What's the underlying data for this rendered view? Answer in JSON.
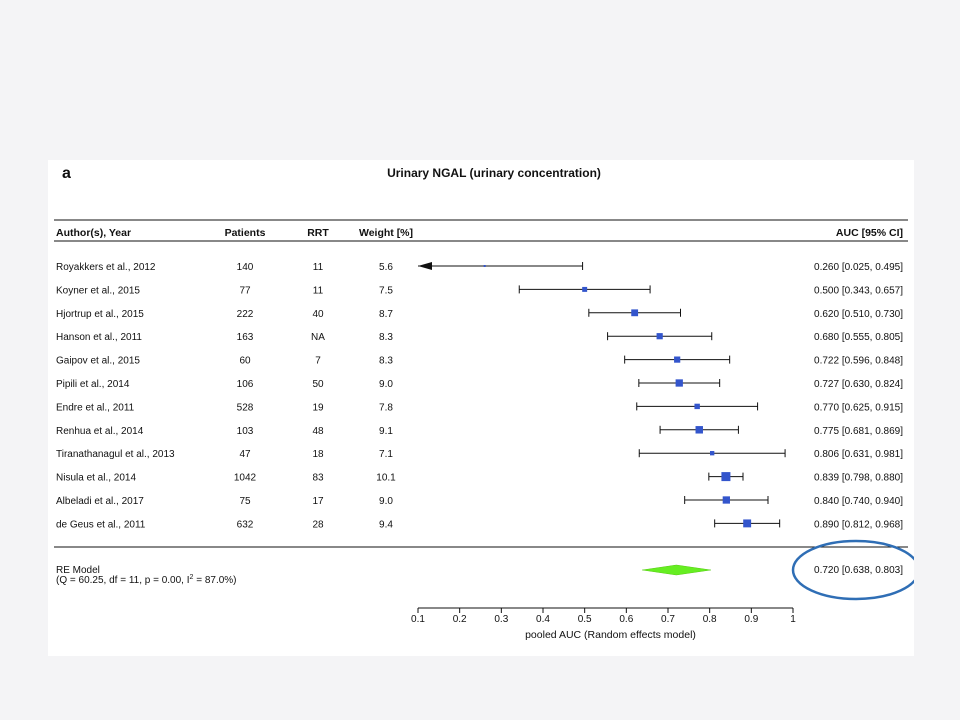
{
  "panel_label": "a",
  "chart_data": {
    "type": "forest",
    "title": "Urinary NGAL (urinary concentration)",
    "columns": {
      "author": "Author(s), Year",
      "patients": "Patients",
      "rrt": "RRT",
      "weight": "Weight [%]",
      "auc": "AUC [95% CI]"
    },
    "studies": [
      {
        "author": "Royakkers et al., 2012",
        "patients": "140",
        "rrt": "11",
        "weight": "5.6",
        "ci_text": "0.260 [0.025, 0.495]",
        "est": 0.26,
        "lo": 0.025,
        "hi": 0.495
      },
      {
        "author": "Koyner et al., 2015",
        "patients": "77",
        "rrt": "11",
        "weight": "7.5",
        "ci_text": "0.500 [0.343, 0.657]",
        "est": 0.5,
        "lo": 0.343,
        "hi": 0.657
      },
      {
        "author": "Hjortrup et al., 2015",
        "patients": "222",
        "rrt": "40",
        "weight": "8.7",
        "ci_text": "0.620 [0.510, 0.730]",
        "est": 0.62,
        "lo": 0.51,
        "hi": 0.73
      },
      {
        "author": "Hanson et al., 2011",
        "patients": "163",
        "rrt": "NA",
        "weight": "8.3",
        "ci_text": "0.680 [0.555, 0.805]",
        "est": 0.68,
        "lo": 0.555,
        "hi": 0.805
      },
      {
        "author": "Gaipov et al., 2015",
        "patients": "60",
        "rrt": "7",
        "weight": "8.3",
        "ci_text": "0.722 [0.596, 0.848]",
        "est": 0.722,
        "lo": 0.596,
        "hi": 0.848
      },
      {
        "author": "Pipili et al., 2014",
        "patients": "106",
        "rrt": "50",
        "weight": "9.0",
        "ci_text": "0.727 [0.630, 0.824]",
        "est": 0.727,
        "lo": 0.63,
        "hi": 0.824
      },
      {
        "author": "Endre et al., 2011",
        "patients": "528",
        "rrt": "19",
        "weight": "7.8",
        "ci_text": "0.770 [0.625, 0.915]",
        "est": 0.77,
        "lo": 0.625,
        "hi": 0.915
      },
      {
        "author": "Renhua et al., 2014",
        "patients": "103",
        "rrt": "48",
        "weight": "9.1",
        "ci_text": "0.775 [0.681, 0.869]",
        "est": 0.775,
        "lo": 0.681,
        "hi": 0.869
      },
      {
        "author": "Tiranathanagul et al., 2013",
        "patients": "47",
        "rrt": "18",
        "weight": "7.1",
        "ci_text": "0.806 [0.631, 0.981]",
        "est": 0.806,
        "lo": 0.631,
        "hi": 0.981
      },
      {
        "author": "Nisula et al., 2014",
        "patients": "1042",
        "rrt": "83",
        "weight": "10.1",
        "ci_text": "0.839 [0.798, 0.880]",
        "est": 0.839,
        "lo": 0.798,
        "hi": 0.88
      },
      {
        "author": "Albeladi et al., 2017",
        "patients": "75",
        "rrt": "17",
        "weight": "9.0",
        "ci_text": "0.840 [0.740, 0.940]",
        "est": 0.84,
        "lo": 0.74,
        "hi": 0.94
      },
      {
        "author": "de Geus et al., 2011",
        "patients": "632",
        "rrt": "28",
        "weight": "9.4",
        "ci_text": "0.890 [0.812, 0.968]",
        "est": 0.89,
        "lo": 0.812,
        "hi": 0.968
      }
    ],
    "summary": {
      "label": "RE Model",
      "stats_prefix": "(Q = 60.25, df = 11, p = 0.00, I",
      "stats_sup": "2",
      "stats_suffix": " = 87.0%)",
      "ci_text": "0.720 [0.638, 0.803]",
      "est": 0.72,
      "lo": 0.638,
      "hi": 0.803
    },
    "xticks": [
      "0.1",
      "0.2",
      "0.3",
      "0.4",
      "0.5",
      "0.6",
      "0.7",
      "0.8",
      "0.9",
      "1"
    ],
    "xlim": [
      0.1,
      1.0
    ],
    "xlabel": "pooled AUC (Random effects model)",
    "colors": {
      "point": "#3355cc",
      "diamond": "#66ee22",
      "highlight": "#2f6eb5",
      "line": "#111111"
    }
  }
}
